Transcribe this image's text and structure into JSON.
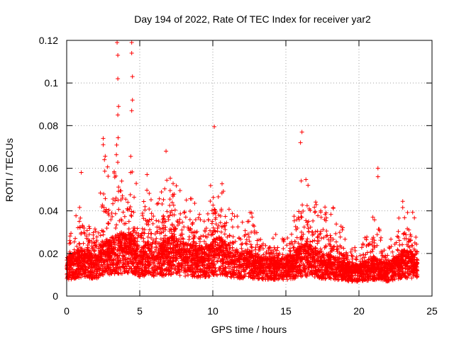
{
  "chart_data": {
    "type": "scatter",
    "title": "Day 194 of 2022, Rate Of TEC Index for receiver yar2",
    "xlabel": "GPS time / hours",
    "ylabel": "ROTI / TECUs",
    "xlim": [
      0,
      25
    ],
    "ylim": [
      0,
      0.12
    ],
    "x_ticks": [
      0,
      5,
      10,
      15,
      20,
      25
    ],
    "x_tick_labels": [
      "0",
      "5",
      "10",
      "15",
      "20",
      "25"
    ],
    "y_ticks": [
      0,
      0.02,
      0.04,
      0.06,
      0.08,
      0.1,
      0.12
    ],
    "y_tick_labels": [
      "0",
      "0.02",
      "0.04",
      "0.06",
      "0.08",
      "0.1",
      "0.12"
    ],
    "grid": true,
    "legend": "none",
    "marker": "plus",
    "color": "#ff0000",
    "notable_points": [
      {
        "x": 3.45,
        "y": 0.119
      },
      {
        "x": 3.5,
        "y": 0.113
      },
      {
        "x": 3.5,
        "y": 0.102
      },
      {
        "x": 3.55,
        "y": 0.089
      },
      {
        "x": 3.5,
        "y": 0.085
      },
      {
        "x": 4.45,
        "y": 0.119
      },
      {
        "x": 4.45,
        "y": 0.114
      },
      {
        "x": 4.5,
        "y": 0.103
      },
      {
        "x": 4.5,
        "y": 0.092
      },
      {
        "x": 4.45,
        "y": 0.087
      },
      {
        "x": 10.1,
        "y": 0.0795
      },
      {
        "x": 16.1,
        "y": 0.077
      },
      {
        "x": 16.0,
        "y": 0.072
      },
      {
        "x": 2.5,
        "y": 0.074
      },
      {
        "x": 2.5,
        "y": 0.071
      },
      {
        "x": 6.8,
        "y": 0.068
      },
      {
        "x": 21.3,
        "y": 0.06
      },
      {
        "x": 21.3,
        "y": 0.056
      },
      {
        "x": 1.0,
        "y": 0.058
      },
      {
        "x": 5.5,
        "y": 0.057
      }
    ],
    "envelope": {
      "x": [
        0,
        0.5,
        1,
        1.5,
        2,
        2.5,
        3,
        3.5,
        4,
        4.5,
        5,
        5.5,
        6,
        6.5,
        7,
        7.5,
        8,
        8.5,
        9,
        9.5,
        10,
        10.5,
        11,
        11.5,
        12,
        12.5,
        13,
        13.5,
        14,
        14.5,
        15,
        15.5,
        16,
        16.5,
        17,
        17.5,
        18,
        18.5,
        19,
        19.5,
        20,
        20.5,
        21,
        21.5,
        22,
        22.5,
        23,
        23.5,
        24
      ],
      "y_max": [
        0.032,
        0.034,
        0.055,
        0.035,
        0.033,
        0.07,
        0.06,
        0.075,
        0.06,
        0.07,
        0.04,
        0.055,
        0.045,
        0.05,
        0.065,
        0.06,
        0.045,
        0.05,
        0.04,
        0.042,
        0.06,
        0.06,
        0.05,
        0.04,
        0.035,
        0.045,
        0.03,
        0.032,
        0.03,
        0.03,
        0.032,
        0.035,
        0.065,
        0.055,
        0.045,
        0.04,
        0.045,
        0.04,
        0.03,
        0.025,
        0.02,
        0.03,
        0.042,
        0.03,
        0.022,
        0.035,
        0.045,
        0.048,
        0.03
      ],
      "y_min": [
        0.004,
        0.004,
        0.004,
        0.004,
        0.004,
        0.004,
        0.004,
        0.004,
        0.004,
        0.004,
        0.004,
        0.004,
        0.004,
        0.004,
        0.004,
        0.004,
        0.004,
        0.004,
        0.004,
        0.004,
        0.004,
        0.004,
        0.004,
        0.004,
        0.004,
        0.004,
        0.004,
        0.004,
        0.004,
        0.004,
        0.004,
        0.004,
        0.004,
        0.004,
        0.004,
        0.004,
        0.004,
        0.004,
        0.004,
        0.004,
        0.004,
        0.004,
        0.004,
        0.004,
        0.004,
        0.004,
        0.004,
        0.004,
        0.004
      ],
      "typical": [
        0.013,
        0.014,
        0.016,
        0.015,
        0.014,
        0.018,
        0.018,
        0.02,
        0.02,
        0.02,
        0.015,
        0.018,
        0.017,
        0.017,
        0.019,
        0.019,
        0.017,
        0.017,
        0.016,
        0.016,
        0.018,
        0.019,
        0.017,
        0.015,
        0.014,
        0.015,
        0.013,
        0.013,
        0.013,
        0.013,
        0.013,
        0.014,
        0.017,
        0.017,
        0.016,
        0.014,
        0.014,
        0.013,
        0.012,
        0.011,
        0.011,
        0.012,
        0.013,
        0.012,
        0.011,
        0.013,
        0.015,
        0.015,
        0.013
      ]
    }
  }
}
